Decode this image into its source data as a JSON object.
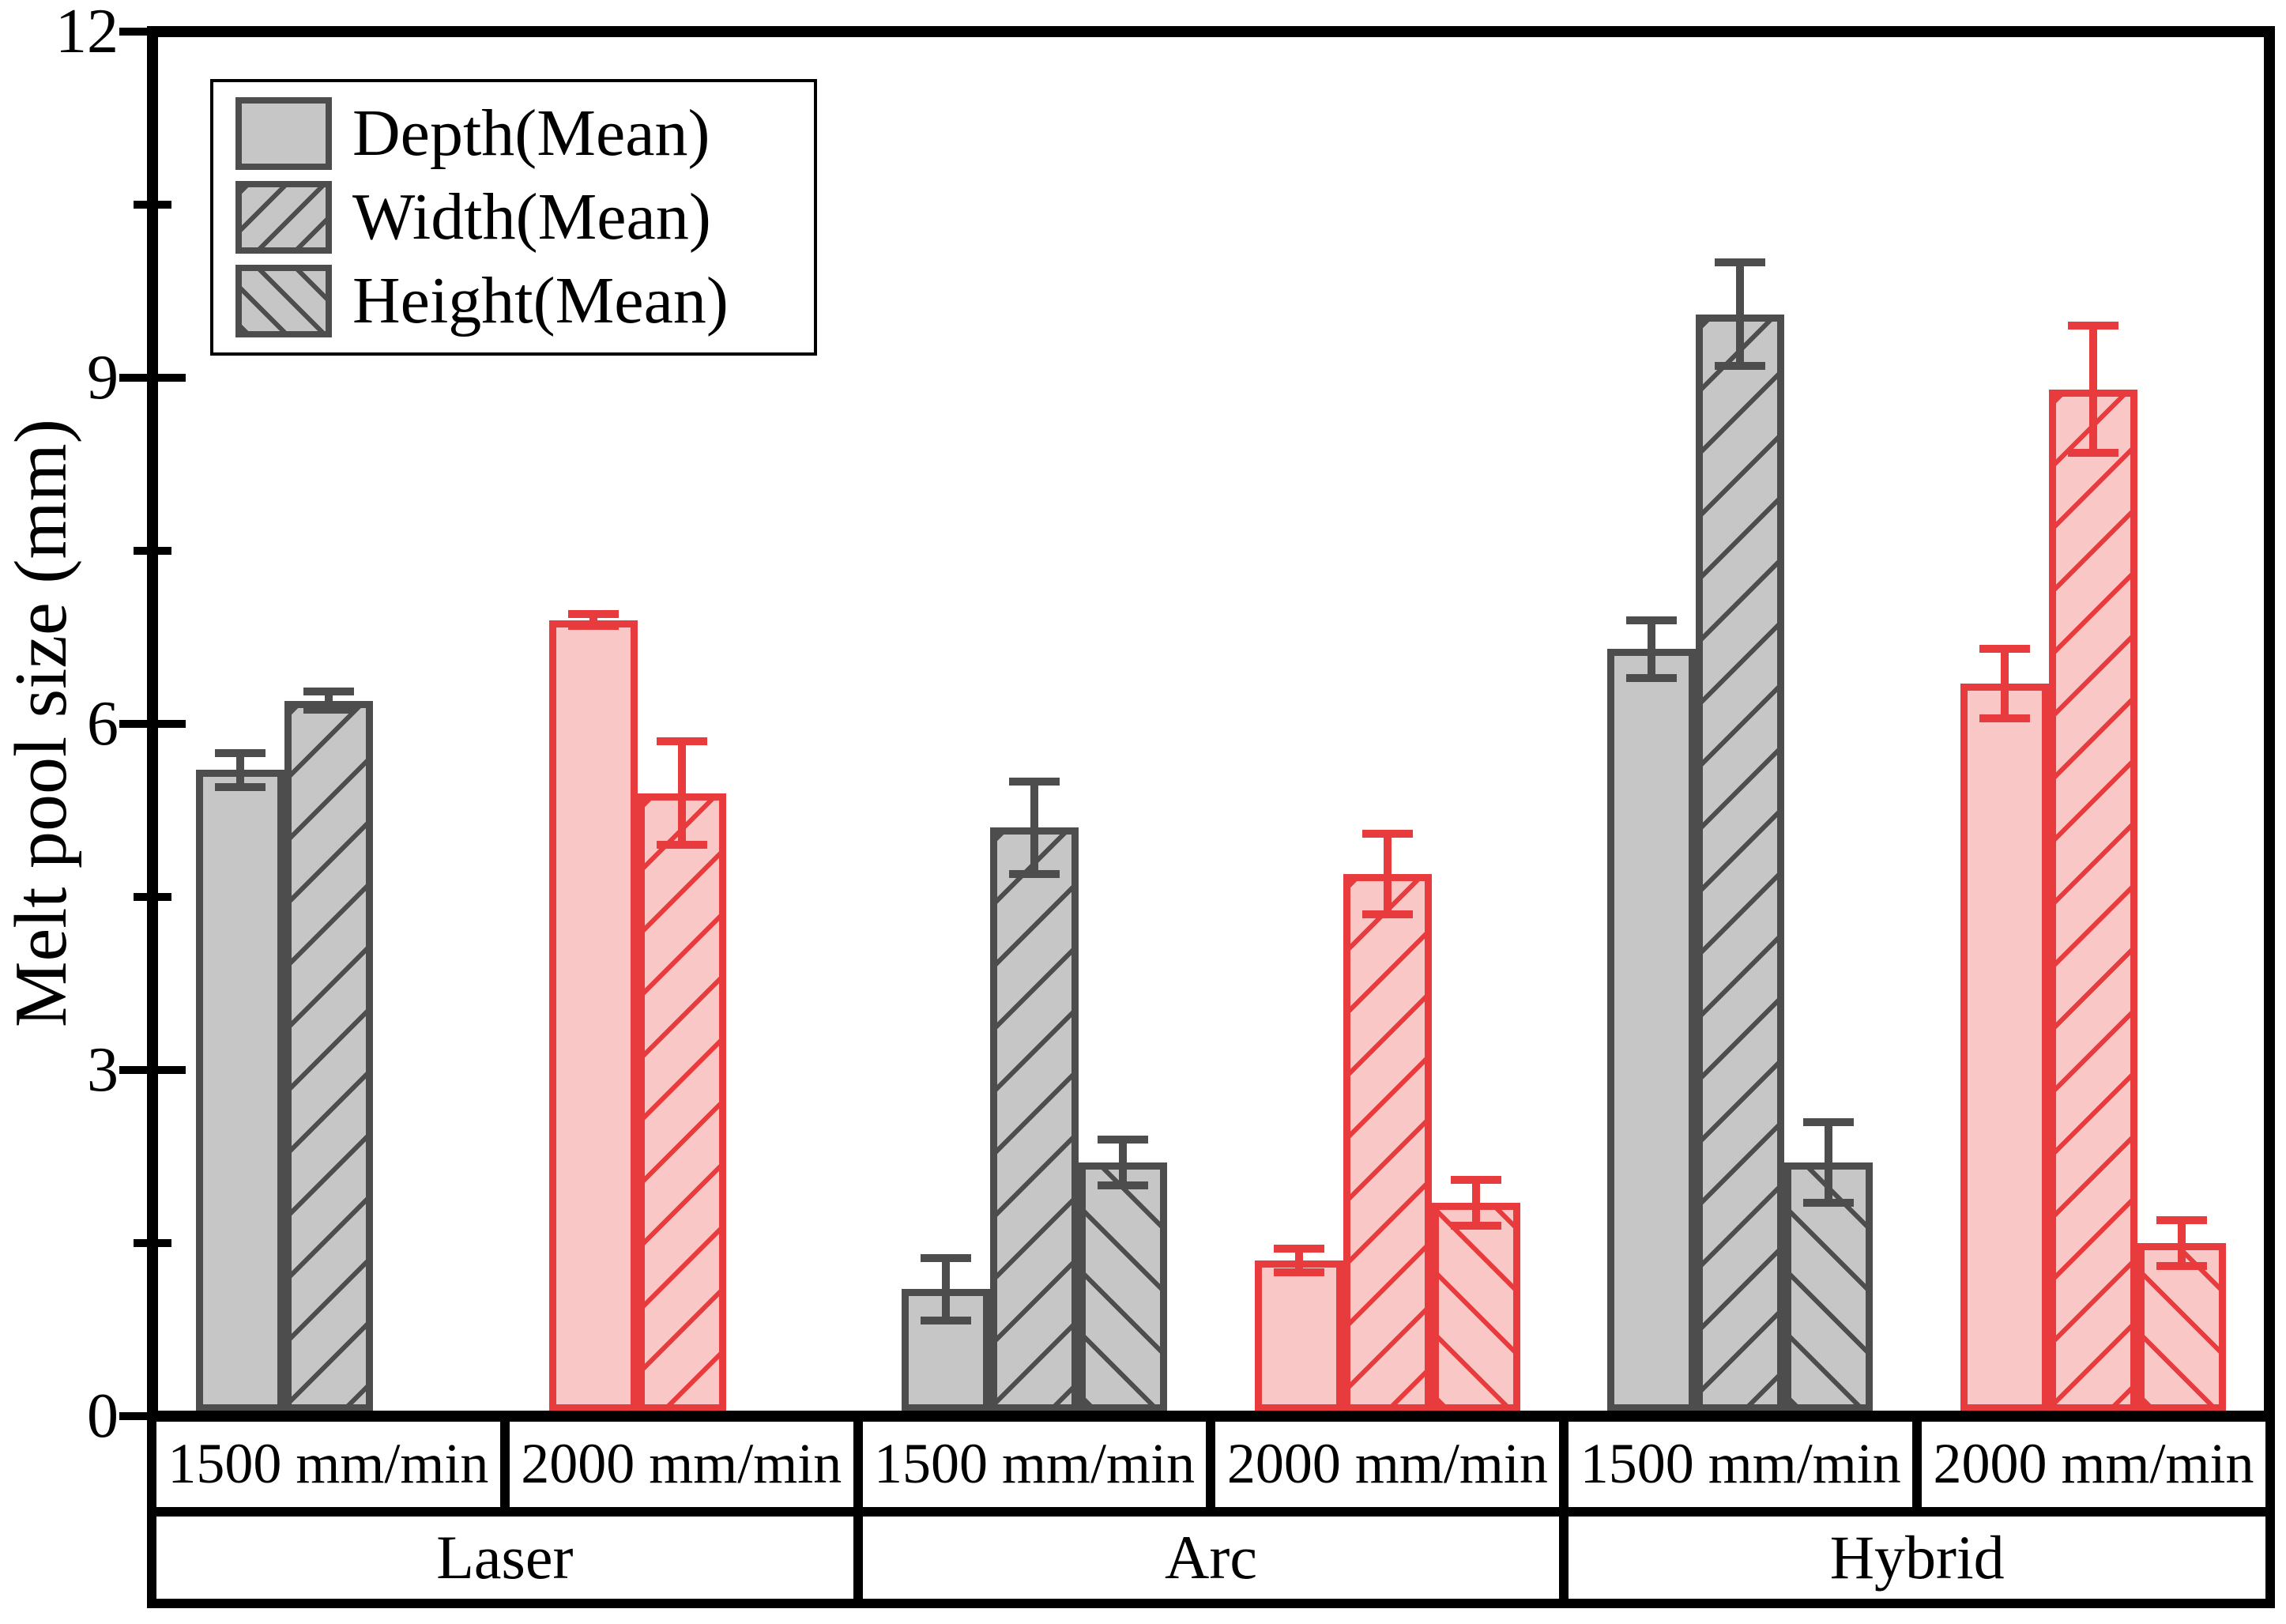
{
  "chart_data": {
    "type": "bar",
    "title": "",
    "xlabel": "",
    "ylabel": "Melt pool size (mm)",
    "ylim": [
      0,
      12
    ],
    "yticks": [
      0,
      3,
      6,
      9,
      12
    ],
    "minor_yticks": [
      1.5,
      4.5,
      7.5,
      10.5
    ],
    "grid": false,
    "legend_position": "top-left",
    "legend": [
      "Depth(Mean)",
      "Width(Mean)",
      "Height(Mean)"
    ],
    "series": [
      {
        "name": "Depth(Mean)",
        "hatch": "none",
        "values": [
          5.6,
          6.9,
          1.1,
          1.35,
          6.65,
          6.35
        ],
        "errors": [
          0.15,
          0.05,
          0.27,
          0.1,
          0.25,
          0.3
        ]
      },
      {
        "name": "Width(Mean)",
        "hatch": "forward-diagonal",
        "values": [
          6.2,
          5.4,
          5.1,
          4.7,
          9.55,
          8.9
        ],
        "errors": [
          0.08,
          0.45,
          0.4,
          0.35,
          0.45,
          0.55
        ]
      },
      {
        "name": "Height(Mean)",
        "hatch": "backward-diagonal",
        "values": [
          null,
          null,
          2.2,
          1.85,
          2.2,
          1.5
        ],
        "errors": [
          null,
          null,
          0.2,
          0.2,
          0.35,
          0.2
        ]
      }
    ],
    "x_axis": {
      "speed_labels": [
        "1500 mm/min",
        "2000 mm/min",
        "1500 mm/min",
        "2000 mm/min",
        "1500 mm/min",
        "2000 mm/min"
      ],
      "process_labels": [
        "Laser",
        "Arc",
        "Hybrid"
      ]
    },
    "group_palette": [
      "gray",
      "red",
      "gray",
      "red",
      "gray",
      "red"
    ],
    "colors": {
      "gray_fill": "#c6c6c6",
      "gray_line": "#4d4d4d",
      "red_fill": "#fac7c7",
      "red_line": "#e83b3d",
      "axis": "#000000",
      "background": "#ffffff"
    }
  }
}
